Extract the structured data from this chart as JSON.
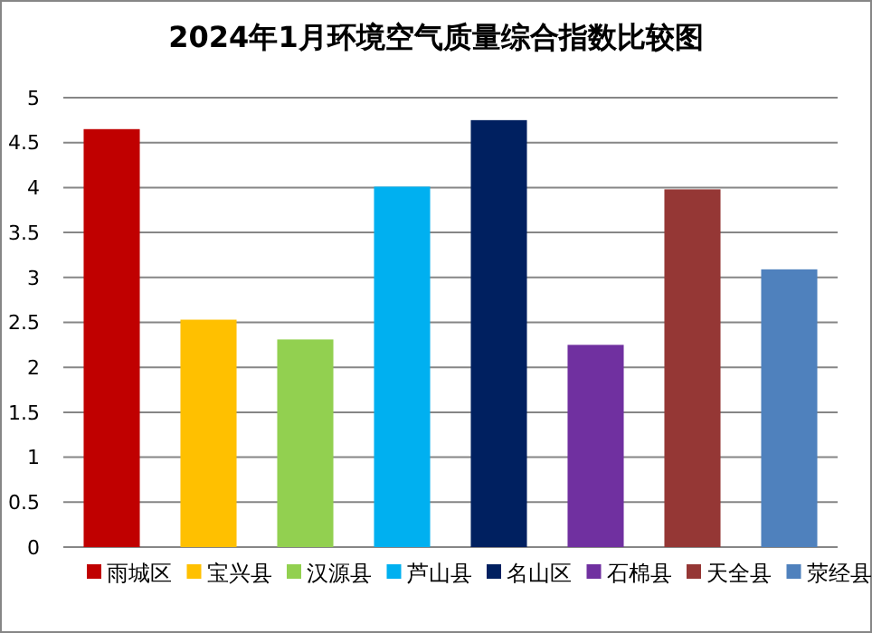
{
  "chart_data": {
    "type": "bar",
    "title": "2024年1月环境空气质量综合指数比较图",
    "categories": [
      null,
      null,
      null,
      null,
      null,
      null,
      null,
      null
    ],
    "series": [
      {
        "name": "雨城区",
        "color": "#c00000",
        "values": [
          4.65,
          null,
          null,
          null,
          null,
          null,
          null,
          null
        ]
      },
      {
        "name": "宝兴县",
        "color": "#ffc000",
        "values": [
          null,
          2.53,
          null,
          null,
          null,
          null,
          null,
          null
        ]
      },
      {
        "name": "汉源县",
        "color": "#92d050",
        "values": [
          null,
          null,
          2.31,
          null,
          null,
          null,
          null,
          null
        ]
      },
      {
        "name": "芦山县",
        "color": "#00b0f0",
        "values": [
          null,
          null,
          null,
          4.01,
          null,
          null,
          null,
          null
        ]
      },
      {
        "name": "名山区",
        "color": "#002060",
        "values": [
          null,
          null,
          null,
          null,
          4.75,
          null,
          null,
          null
        ]
      },
      {
        "name": "石棉县",
        "color": "#7030a0",
        "values": [
          null,
          null,
          null,
          null,
          null,
          2.25,
          null,
          null
        ]
      },
      {
        "name": "天全县",
        "color": "#953735",
        "values": [
          null,
          null,
          null,
          null,
          null,
          null,
          3.98,
          null
        ]
      },
      {
        "name": "荥经县",
        "color": "#4f81bd",
        "values": [
          null,
          null,
          null,
          null,
          null,
          null,
          null,
          3.09
        ]
      }
    ],
    "ylim": [
      0,
      5
    ],
    "yticks": [
      0,
      0.5,
      1,
      1.5,
      2,
      2.5,
      3,
      3.5,
      4,
      4.5,
      5
    ],
    "grid": "y",
    "legend": "bottom"
  }
}
